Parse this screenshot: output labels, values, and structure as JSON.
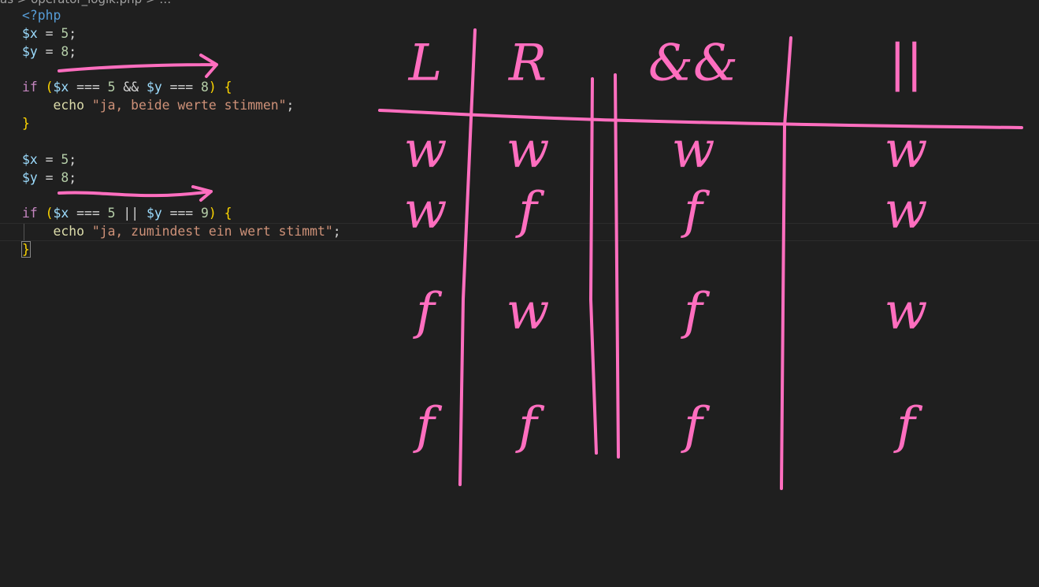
{
  "breadcrumb": [
    "as",
    "operator_logik.php"
  ],
  "code": {
    "lines": [
      [
        {
          "text": "<?php",
          "color": "#569cd6"
        }
      ],
      [
        {
          "text": "$x",
          "color": "#9cdcfe"
        },
        {
          "text": " = ",
          "color": "#d4d4d4"
        },
        {
          "text": "5",
          "color": "#b5cea8"
        },
        {
          "text": ";",
          "color": "#d4d4d4"
        }
      ],
      [
        {
          "text": "$y",
          "color": "#9cdcfe"
        },
        {
          "text": " = ",
          "color": "#d4d4d4"
        },
        {
          "text": "8",
          "color": "#b5cea8"
        },
        {
          "text": ";",
          "color": "#d4d4d4"
        }
      ],
      [],
      [
        {
          "text": "if",
          "color": "#c586c0"
        },
        {
          "text": " ",
          "color": "#d4d4d4"
        },
        {
          "text": "(",
          "color": "#ffd700"
        },
        {
          "text": "$x",
          "color": "#9cdcfe"
        },
        {
          "text": " === ",
          "color": "#d4d4d4"
        },
        {
          "text": "5",
          "color": "#b5cea8"
        },
        {
          "text": " && ",
          "color": "#d4d4d4"
        },
        {
          "text": "$y",
          "color": "#9cdcfe"
        },
        {
          "text": " === ",
          "color": "#d4d4d4"
        },
        {
          "text": "8",
          "color": "#b5cea8"
        },
        {
          "text": ")",
          "color": "#ffd700"
        },
        {
          "text": " ",
          "color": "#d4d4d4"
        },
        {
          "text": "{",
          "color": "#ffd700"
        }
      ],
      [
        {
          "text": "    echo",
          "color": "#dcdcaa"
        },
        {
          "text": " ",
          "color": "#d4d4d4"
        },
        {
          "text": "\"ja, beide werte stimmen\"",
          "color": "#ce9178"
        },
        {
          "text": ";",
          "color": "#d4d4d4"
        }
      ],
      [
        {
          "text": "}",
          "color": "#ffd700"
        }
      ],
      [],
      [
        {
          "text": "$x",
          "color": "#9cdcfe"
        },
        {
          "text": " = ",
          "color": "#d4d4d4"
        },
        {
          "text": "5",
          "color": "#b5cea8"
        },
        {
          "text": ";",
          "color": "#d4d4d4"
        }
      ],
      [
        {
          "text": "$y",
          "color": "#9cdcfe"
        },
        {
          "text": " = ",
          "color": "#d4d4d4"
        },
        {
          "text": "8",
          "color": "#b5cea8"
        },
        {
          "text": ";",
          "color": "#d4d4d4"
        }
      ],
      [],
      [
        {
          "text": "if",
          "color": "#c586c0"
        },
        {
          "text": " ",
          "color": "#d4d4d4"
        },
        {
          "text": "(",
          "color": "#ffd700"
        },
        {
          "text": "$x",
          "color": "#9cdcfe"
        },
        {
          "text": " === ",
          "color": "#d4d4d4"
        },
        {
          "text": "5",
          "color": "#b5cea8"
        },
        {
          "text": " || ",
          "color": "#d4d4d4"
        },
        {
          "text": "$y",
          "color": "#9cdcfe"
        },
        {
          "text": " === ",
          "color": "#d4d4d4"
        },
        {
          "text": "9",
          "color": "#b5cea8"
        },
        {
          "text": ")",
          "color": "#ffd700"
        },
        {
          "text": " ",
          "color": "#d4d4d4"
        },
        {
          "text": "{",
          "color": "#ffd700"
        }
      ],
      [
        {
          "text": "    echo",
          "color": "#dcdcaa"
        },
        {
          "text": " ",
          "color": "#d4d4d4"
        },
        {
          "text": "\"ja, zumindest ein wert stimmt\"",
          "color": "#ce9178"
        },
        {
          "text": ";",
          "color": "#d4d4d4"
        }
      ],
      [
        {
          "text": "}",
          "color": "#ffd700"
        }
      ]
    ]
  },
  "handwriting": {
    "headers": [
      "L",
      "R",
      "&&",
      "||"
    ],
    "rows": [
      [
        "w",
        "w",
        "w",
        "w"
      ],
      [
        "w",
        "f",
        "f",
        "w"
      ],
      [
        "f",
        "w",
        "f",
        "w"
      ],
      [
        "f",
        "f",
        "f",
        "f"
      ]
    ]
  }
}
